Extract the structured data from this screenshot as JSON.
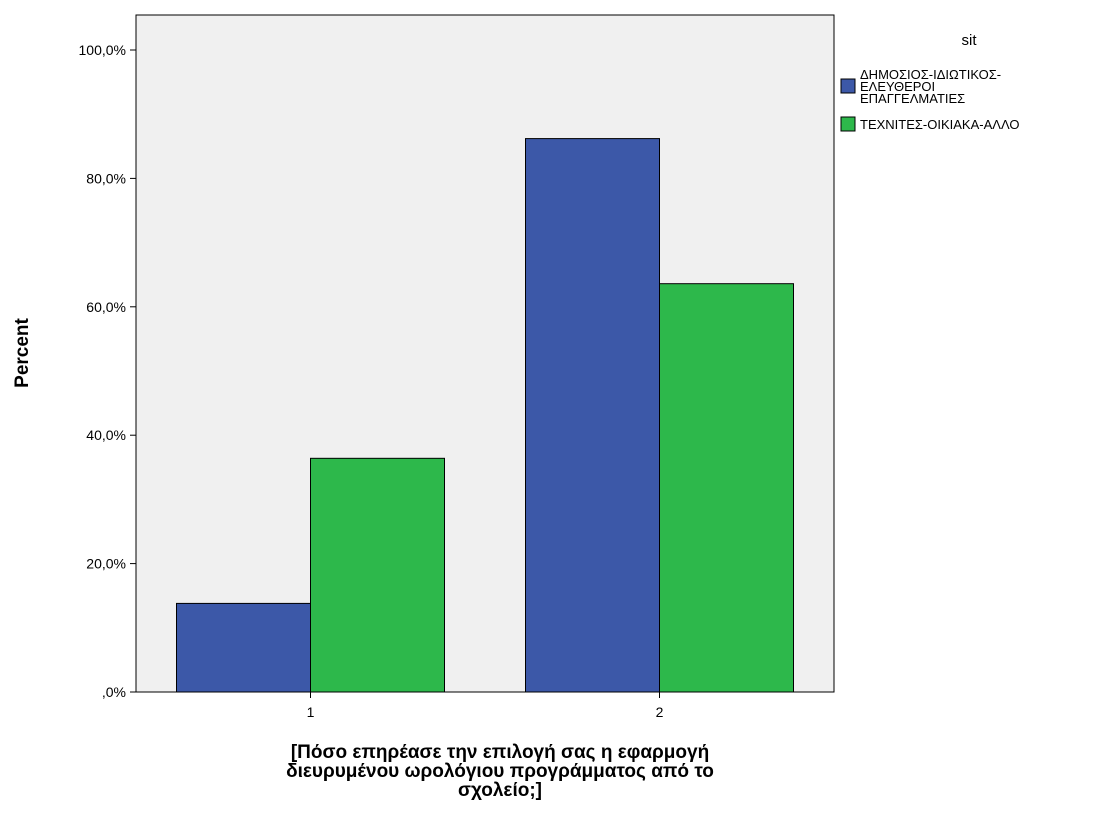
{
  "chart_data": {
    "type": "bar",
    "categories": [
      "1",
      "2"
    ],
    "series": [
      {
        "name": "ΔΗΜΟΣΙΟΣ-ΙΔΙΩΤΙΚΟΣ-ΕΛΕΥΘΕΡΟΙ ΕΠΑΓΓΕΛΜΑΤΙΕΣ",
        "name_lines": [
          "ΔΗΜΟΣΙΟΣ-ΙΔΙΩΤΙΚΟΣ-",
          "ΕΛΕΥΘΕΡΟΙ",
          "ΕΠΑΓΓΕΛΜΑΤΙΕΣ"
        ],
        "color": "#3c58a8",
        "values": [
          13.8,
          86.2
        ]
      },
      {
        "name": "ΤΕΧΝΙΤΕΣ-ΟΙΚΙΑΚΑ-ΑΛΛΟ",
        "name_lines": [
          "ΤΕΧΝΙΤΕΣ-ΟΙΚΙΑΚΑ-ΑΛΛΟ"
        ],
        "color": "#2db84b",
        "values": [
          36.4,
          63.6
        ]
      }
    ],
    "ylabel": "Percent",
    "xlabel": "[Πόσο επηρέασε την επιλογή σας η εφαρμογή διευρυμένου ωρολόγιου προγράμματος από το σχολείο;]",
    "xlabel_lines": [
      "[Πόσο επηρέασε την επιλογή σας η εφαρμογή",
      "διευρυμένου ωρολόγιου προγράμματος από το",
      "σχολείο;]"
    ],
    "ylim": [
      0,
      100
    ],
    "yticks": [
      0,
      20,
      40,
      60,
      80,
      100
    ],
    "ytick_labels": [
      ",0%",
      "20,0%",
      "40,0%",
      "60,0%",
      "80,0%",
      "100,0%"
    ],
    "legend": {
      "title": "sit",
      "position": "right"
    },
    "grid": false,
    "plot_background": "#f0f0f0"
  }
}
